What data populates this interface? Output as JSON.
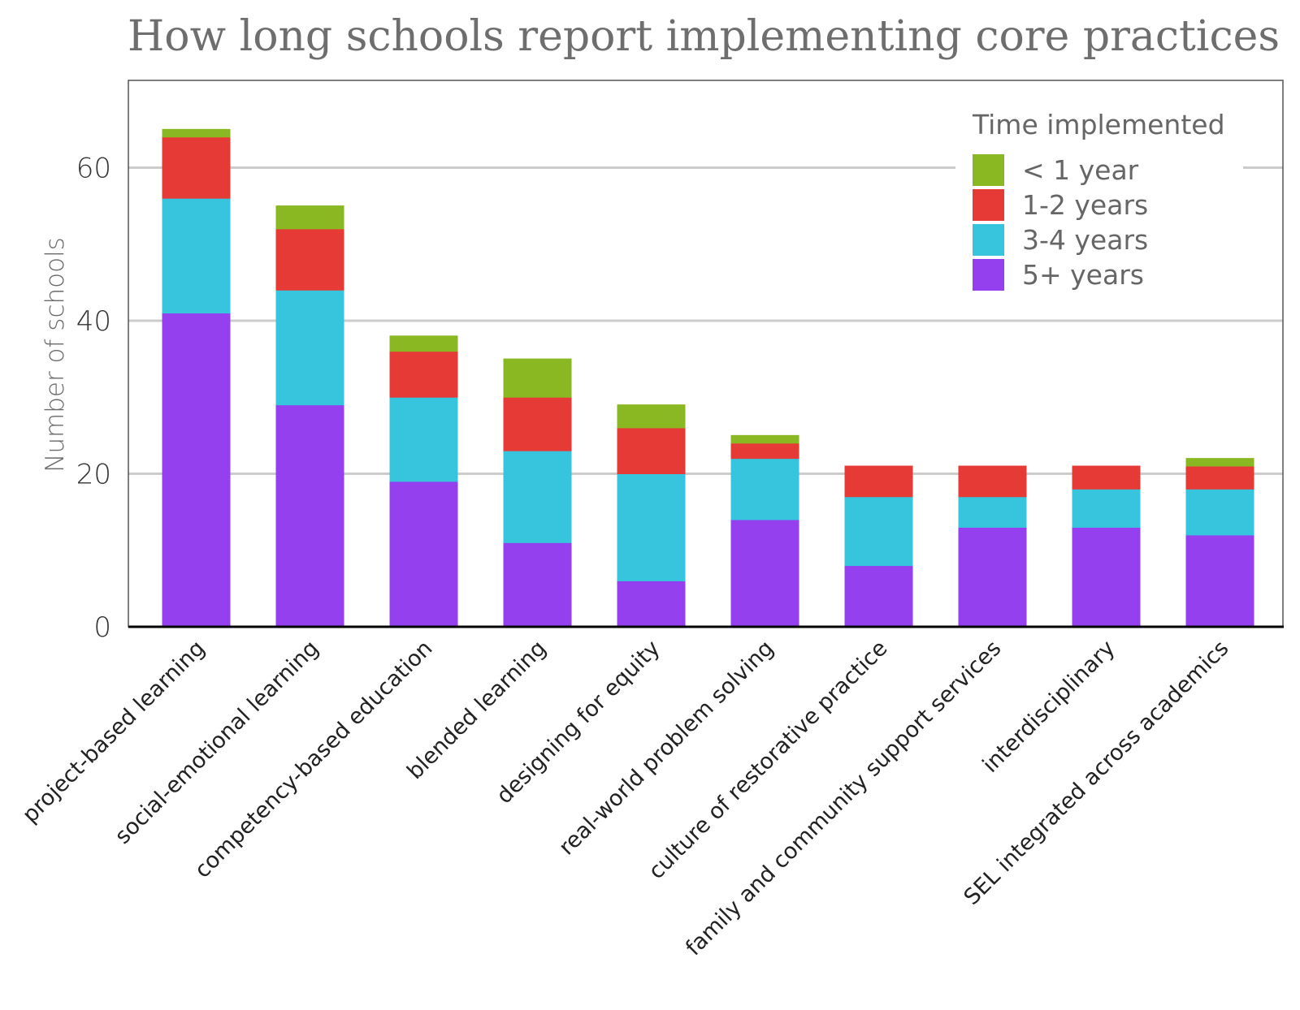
{
  "chart_data": {
    "type": "bar",
    "stacked": true,
    "title": "How long schools report implementing core practices",
    "xlabel": "",
    "ylabel": "Number of schools",
    "ylim": [
      0,
      71.4
    ],
    "yticks": [
      0,
      20,
      40,
      60
    ],
    "grid": true,
    "legend_title": "Time implemented",
    "legend_position": "top-right",
    "categories": [
      "project-based learning",
      "social-emotional learning",
      "competency-based education",
      "blended learning",
      "designing for equity",
      "real-world problem solving",
      "culture of restorative practice",
      "family and community support services",
      "interdisciplinary",
      "SEL integrated across academics"
    ],
    "series": [
      {
        "name": "5+ years",
        "color": "#9440ef",
        "values": [
          41,
          29,
          19,
          11,
          6,
          14,
          8,
          13,
          13,
          12
        ]
      },
      {
        "name": "3-4 years",
        "color": "#36c5dd",
        "values": [
          15,
          15,
          11,
          12,
          14,
          8,
          9,
          4,
          5,
          6
        ]
      },
      {
        "name": "1-2 years",
        "color": "#e63a37",
        "values": [
          8,
          8,
          6,
          7,
          6,
          2,
          4,
          4,
          3,
          3
        ]
      },
      {
        "name": "< 1 year",
        "color": "#8ab822",
        "values": [
          1,
          3,
          2,
          5,
          3,
          1,
          0,
          0,
          0,
          1
        ]
      }
    ],
    "legend_order": [
      "< 1 year",
      "1-2 years",
      "3-4 years",
      "5+ years"
    ]
  }
}
